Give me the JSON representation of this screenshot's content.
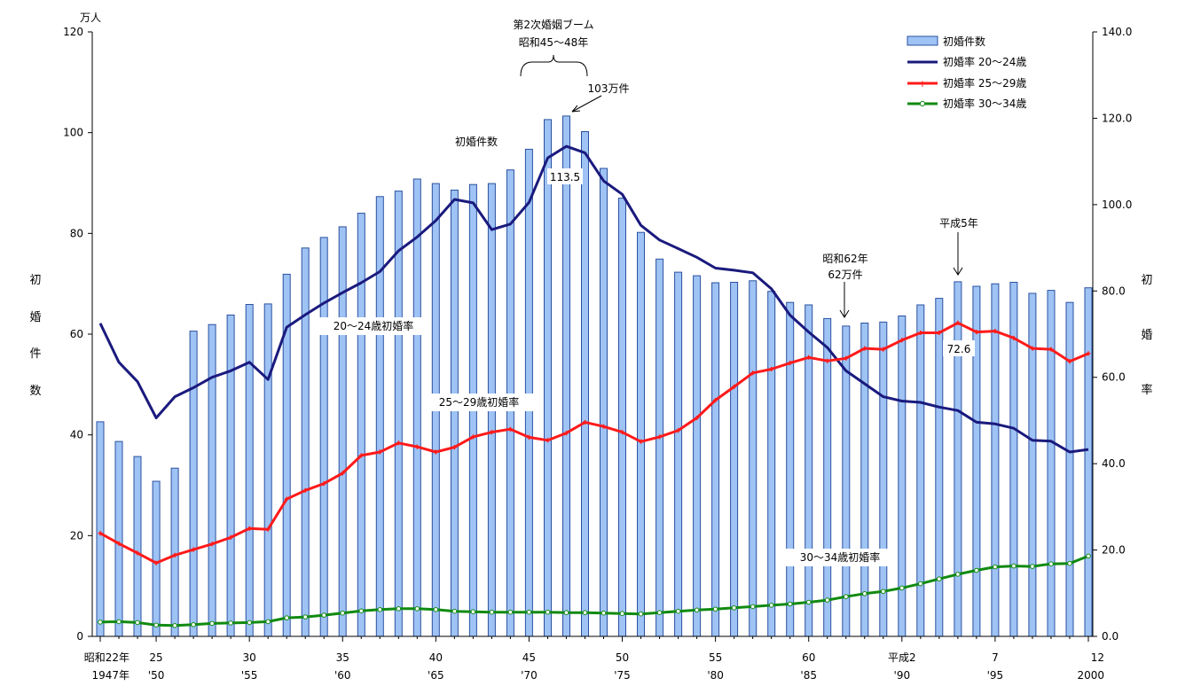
{
  "chart_data": {
    "type": "bar",
    "title": "",
    "y_unit": "万人",
    "ylabel_left": [
      "初",
      "婚",
      "件",
      "数"
    ],
    "ylabel_right": [
      "初",
      "婚",
      "率"
    ],
    "ylim_left": [
      0,
      120
    ],
    "ylim_right": [
      0,
      140
    ],
    "left_ticks": [
      "0",
      "20",
      "40",
      "60",
      "80",
      "100",
      "120"
    ],
    "right_ticks": [
      "0.0",
      "20.0",
      "40.0",
      "60.0",
      "80.0",
      "100.0",
      "120.0",
      "140.0"
    ],
    "grid": false,
    "legend_position": "top-right",
    "x": [
      1947,
      1948,
      1949,
      1950,
      1951,
      1952,
      1953,
      1954,
      1955,
      1956,
      1957,
      1958,
      1959,
      1960,
      1961,
      1962,
      1963,
      1964,
      1965,
      1966,
      1967,
      1968,
      1969,
      1970,
      1971,
      1972,
      1973,
      1974,
      1975,
      1976,
      1977,
      1978,
      1979,
      1980,
      1981,
      1982,
      1983,
      1984,
      1985,
      1986,
      1987,
      1988,
      1989,
      1990,
      1991,
      1992,
      1993,
      1994,
      1995,
      1996,
      1997,
      1998,
      1999,
      2000
    ],
    "x_tick_labels": [
      {
        "top": "昭和22年",
        "bottom": "1947年",
        "year": 1947
      },
      {
        "top": "25",
        "bottom": "'50",
        "year": 1950
      },
      {
        "top": "30",
        "bottom": "'55",
        "year": 1955
      },
      {
        "top": "35",
        "bottom": "'60",
        "year": 1960
      },
      {
        "top": "40",
        "bottom": "'65",
        "year": 1965
      },
      {
        "top": "45",
        "bottom": "'70",
        "year": 1970
      },
      {
        "top": "50",
        "bottom": "'75",
        "year": 1975
      },
      {
        "top": "55",
        "bottom": "'80",
        "year": 1980
      },
      {
        "top": "60",
        "bottom": "'85",
        "year": 1985
      },
      {
        "top": "平成2",
        "bottom": "'90",
        "year": 1990
      },
      {
        "top": "7",
        "bottom": "'95",
        "year": 1995
      },
      {
        "top": "12",
        "bottom": "2000",
        "year": 2000
      }
    ],
    "series": [
      {
        "name": "初婚件数",
        "kind": "bar",
        "axis": "left",
        "color": "#9ec3f4",
        "values": [
          42.6,
          38.7,
          35.7,
          30.8,
          33.4,
          60.6,
          61.9,
          63.8,
          65.9,
          66.0,
          71.9,
          77.1,
          79.2,
          81.3,
          84.0,
          87.3,
          88.4,
          90.8,
          89.9,
          88.6,
          89.7,
          89.9,
          92.6,
          96.7,
          102.6,
          103.3,
          100.2,
          92.9,
          87.0,
          80.2,
          74.9,
          72.3,
          71.6,
          70.2,
          70.3,
          70.6,
          68.5,
          66.3,
          65.8,
          63.1,
          61.6,
          62.2,
          62.4,
          63.6,
          65.8,
          67.1,
          70.4,
          69.5,
          70.0,
          70.3,
          68.1,
          68.7,
          66.3,
          69.2
        ]
      },
      {
        "name": "初婚率 20～24歳",
        "kind": "line",
        "axis": "right",
        "color": "#1a1a7e",
        "marker": "none",
        "values": [
          72.5,
          63.5,
          59.0,
          50.6,
          55.5,
          57.6,
          60.0,
          61.5,
          63.5,
          59.5,
          71.6,
          74.5,
          77.2,
          79.6,
          81.9,
          84.5,
          89.3,
          92.5,
          96.3,
          101.2,
          100.4,
          94.2,
          95.5,
          100.5,
          110.8,
          113.5,
          112.0,
          105.5,
          102.4,
          95.2,
          91.8,
          89.8,
          87.8,
          85.3,
          84.8,
          84.2,
          80.5,
          74.4,
          70.5,
          66.9,
          61.5,
          58.5,
          55.5,
          54.5,
          54.2,
          53.1,
          52.3,
          49.6,
          49.2,
          48.2,
          45.4,
          45.2,
          42.7,
          43.3
        ]
      },
      {
        "name": "初婚率 25～29歳",
        "kind": "line",
        "axis": "right",
        "color": "#ff1a1a",
        "marker": "plus",
        "values": [
          23.9,
          21.5,
          19.3,
          17.0,
          18.8,
          20.1,
          21.4,
          22.9,
          25.0,
          24.8,
          31.8,
          33.8,
          35.4,
          37.8,
          41.9,
          42.7,
          44.8,
          43.9,
          42.7,
          43.8,
          46.2,
          47.3,
          48.0,
          46.1,
          45.4,
          47.1,
          49.6,
          48.6,
          47.3,
          45.1,
          46.2,
          47.7,
          50.6,
          54.7,
          57.8,
          61.0,
          61.9,
          63.3,
          64.6,
          63.8,
          64.4,
          66.7,
          66.5,
          68.6,
          70.3,
          70.3,
          72.6,
          70.5,
          70.7,
          69.1,
          66.7,
          66.5,
          63.7,
          65.5
        ]
      },
      {
        "name": "初婚率 30～34歳",
        "kind": "line",
        "axis": "right",
        "color": "#118a11",
        "marker": "circle",
        "values": [
          3.3,
          3.4,
          3.2,
          2.6,
          2.5,
          2.7,
          3.0,
          3.1,
          3.2,
          3.4,
          4.3,
          4.5,
          4.9,
          5.4,
          5.9,
          6.2,
          6.4,
          6.4,
          6.2,
          5.8,
          5.7,
          5.6,
          5.6,
          5.6,
          5.6,
          5.5,
          5.5,
          5.4,
          5.3,
          5.2,
          5.5,
          5.8,
          6.1,
          6.3,
          6.6,
          6.9,
          7.2,
          7.5,
          7.9,
          8.4,
          9.2,
          9.9,
          10.4,
          11.2,
          12.2,
          13.3,
          14.4,
          15.3,
          16.1,
          16.3,
          16.2,
          16.8,
          16.9,
          18.6
        ]
      }
    ],
    "annotations": [
      {
        "id": "boom_title",
        "text": "第2次婚姻ブーム"
      },
      {
        "id": "boom_period",
        "text": "昭和45～48年"
      },
      {
        "id": "peak_count",
        "text": "103万件"
      },
      {
        "id": "bar_label",
        "text": "初婚件数"
      },
      {
        "id": "peak_rate",
        "text": "113.5"
      },
      {
        "id": "label_2024",
        "text": "20～24歳初婚率"
      },
      {
        "id": "label_2529",
        "text": "25～29歳初婚率"
      },
      {
        "id": "label_3034",
        "text": "30～34歳初婚率"
      },
      {
        "id": "low_year",
        "text": "昭和62年"
      },
      {
        "id": "low_count",
        "text": "62万件"
      },
      {
        "id": "h5",
        "text": "平成5年"
      },
      {
        "id": "rate_726",
        "text": "72.6"
      }
    ]
  }
}
